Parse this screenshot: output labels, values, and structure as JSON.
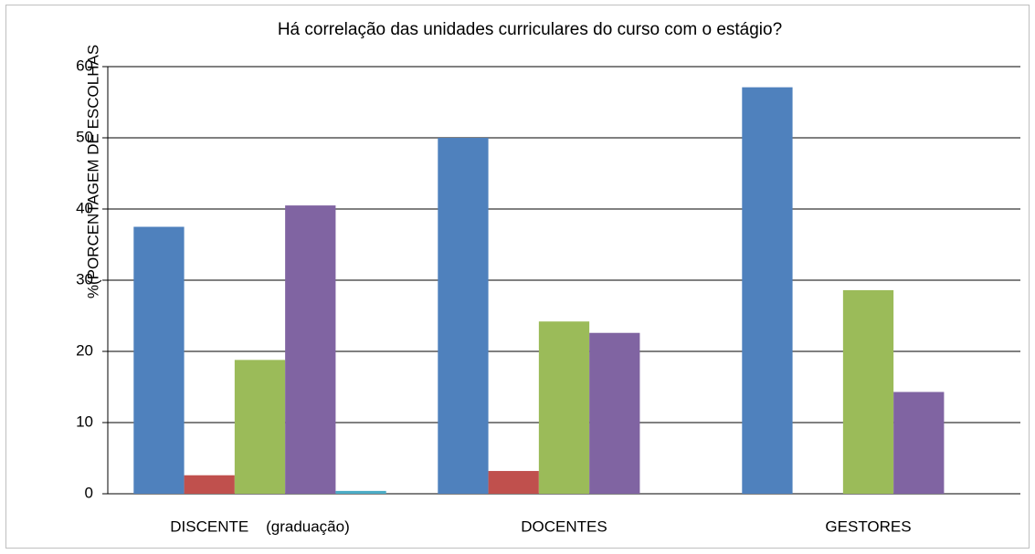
{
  "chart_data": {
    "type": "bar",
    "title": "Há correlação das unidades curriculares do curso com o estágio?",
    "y_label": "%(PORCENTAGEM DE ESCOLHAS",
    "categories": [
      "DISCENTE    (graduação)",
      "DOCENTES",
      "GESTORES"
    ],
    "series": [
      {
        "color": "#4f81bd",
        "values": [
          37.5,
          50,
          57.1
        ]
      },
      {
        "color": "#c0504d",
        "values": [
          2.6,
          3.2,
          0
        ]
      },
      {
        "color": "#9bbb59",
        "values": [
          18.8,
          24.2,
          28.6
        ]
      },
      {
        "color": "#8064a2",
        "values": [
          40.5,
          22.6,
          14.3
        ]
      },
      {
        "color": "#4bacc6",
        "values": [
          0.4,
          0,
          0
        ]
      }
    ],
    "ylim": [
      0,
      60
    ],
    "yticks": [
      0,
      10,
      20,
      30,
      40,
      50,
      60
    ],
    "grid": true
  }
}
